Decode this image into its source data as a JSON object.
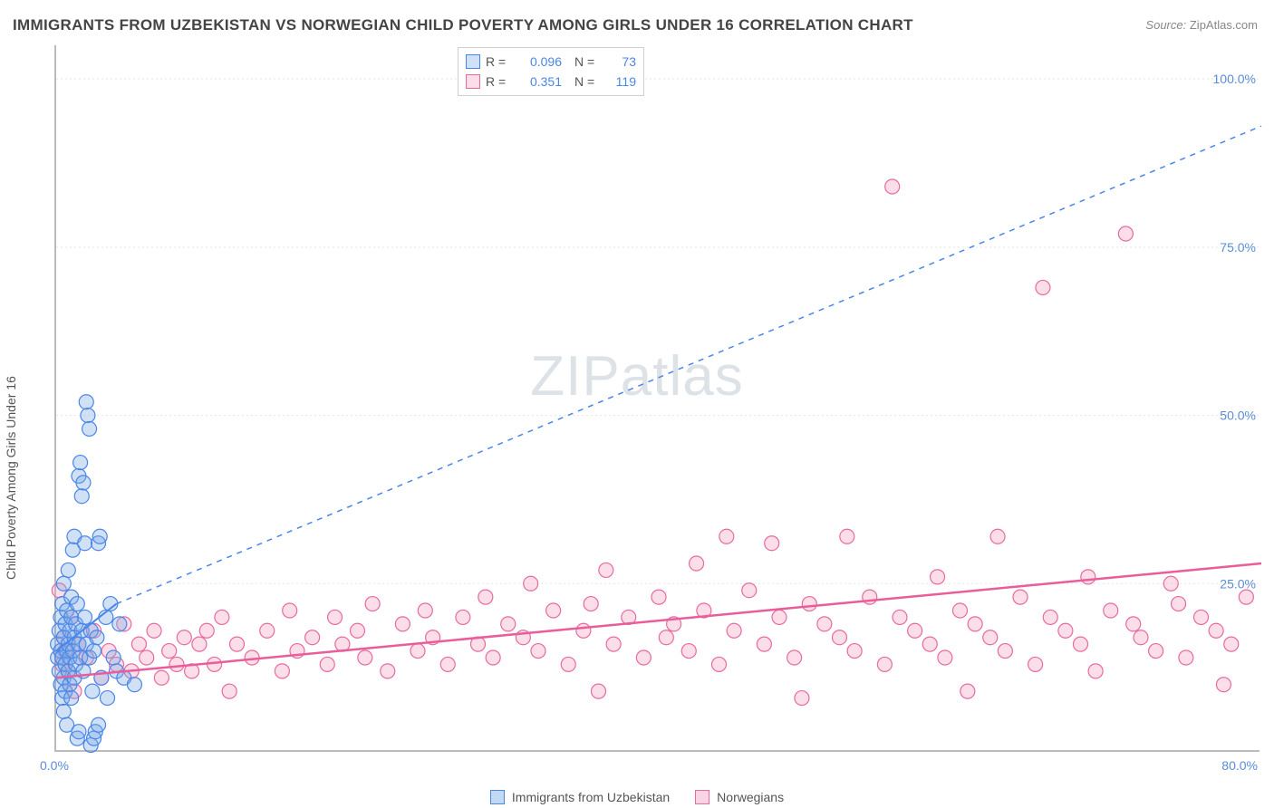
{
  "title": "IMMIGRANTS FROM UZBEKISTAN VS NORWEGIAN CHILD POVERTY AMONG GIRLS UNDER 16 CORRELATION CHART",
  "source": {
    "label": "Source:",
    "value": "ZipAtlas.com"
  },
  "watermark": {
    "zip": "ZIP",
    "atlas": "atlas"
  },
  "y_axis_label": "Child Poverty Among Girls Under 16",
  "x_origin_label": "0.0%",
  "chart": {
    "type": "scatter",
    "background_color": "#ffffff",
    "grid_color": "#e5e5e5",
    "axis_color": "#bbbbbb",
    "tick_color": "#5b8dd6",
    "xlim": [
      0,
      80
    ],
    "ylim": [
      0,
      105
    ],
    "x_ticks": [
      {
        "value": 80,
        "label": "80.0%"
      }
    ],
    "y_ticks": [
      {
        "value": 25,
        "label": "25.0%"
      },
      {
        "value": 50,
        "label": "50.0%"
      },
      {
        "value": 75,
        "label": "75.0%"
      },
      {
        "value": 100,
        "label": "100.0%"
      }
    ],
    "marker_radius": 8,
    "marker_stroke_width": 1.2,
    "series": [
      {
        "id": "blue",
        "name": "Immigrants from Uzbekistan",
        "fill": "rgba(120,170,230,0.35)",
        "stroke": "#4a86e8",
        "trend": {
          "dashed": true,
          "extend_dashed": true,
          "color": "#4a86e8",
          "width": 2,
          "solid_from": [
            0,
            15
          ],
          "solid_to": [
            4,
            22
          ],
          "dash_to": [
            80,
            93
          ]
        },
        "stats": {
          "R": "0.096",
          "N": "73"
        },
        "points": [
          [
            0.1,
            14
          ],
          [
            0.1,
            16
          ],
          [
            0.2,
            18
          ],
          [
            0.2,
            12
          ],
          [
            0.3,
            15
          ],
          [
            0.3,
            10
          ],
          [
            0.3,
            20
          ],
          [
            0.4,
            22
          ],
          [
            0.4,
            14
          ],
          [
            0.4,
            8
          ],
          [
            0.5,
            17
          ],
          [
            0.5,
            6
          ],
          [
            0.5,
            25
          ],
          [
            0.5,
            11
          ],
          [
            0.6,
            13
          ],
          [
            0.6,
            19
          ],
          [
            0.6,
            9
          ],
          [
            0.7,
            15
          ],
          [
            0.7,
            21
          ],
          [
            0.7,
            4
          ],
          [
            0.8,
            16
          ],
          [
            0.8,
            12
          ],
          [
            0.8,
            27
          ],
          [
            0.9,
            18
          ],
          [
            0.9,
            10
          ],
          [
            0.9,
            14
          ],
          [
            1.0,
            20
          ],
          [
            1.0,
            8
          ],
          [
            1.0,
            23
          ],
          [
            1.1,
            15
          ],
          [
            1.1,
            30
          ],
          [
            1.2,
            17
          ],
          [
            1.2,
            11
          ],
          [
            1.2,
            32
          ],
          [
            1.3,
            19
          ],
          [
            1.3,
            13
          ],
          [
            1.4,
            2
          ],
          [
            1.4,
            22
          ],
          [
            1.5,
            16
          ],
          [
            1.5,
            3
          ],
          [
            1.5,
            41
          ],
          [
            1.6,
            14
          ],
          [
            1.6,
            43
          ],
          [
            1.7,
            18
          ],
          [
            1.7,
            38
          ],
          [
            1.8,
            12
          ],
          [
            1.8,
            40
          ],
          [
            1.9,
            20
          ],
          [
            1.9,
            31
          ],
          [
            2.0,
            16
          ],
          [
            2.0,
            52
          ],
          [
            2.1,
            50
          ],
          [
            2.2,
            14
          ],
          [
            2.2,
            48
          ],
          [
            2.3,
            18
          ],
          [
            2.3,
            1
          ],
          [
            2.4,
            9
          ],
          [
            2.5,
            2
          ],
          [
            2.5,
            15
          ],
          [
            2.6,
            3
          ],
          [
            2.7,
            17
          ],
          [
            2.8,
            4
          ],
          [
            2.8,
            31
          ],
          [
            2.9,
            32
          ],
          [
            3.0,
            11
          ],
          [
            3.3,
            20
          ],
          [
            3.4,
            8
          ],
          [
            3.6,
            22
          ],
          [
            3.8,
            14
          ],
          [
            4.0,
            12
          ],
          [
            4.2,
            19
          ],
          [
            4.5,
            11
          ],
          [
            5.2,
            10
          ]
        ]
      },
      {
        "id": "pink",
        "name": "Norwegians",
        "fill": "rgba(245,160,190,0.35)",
        "stroke": "#e76aa0",
        "trend": {
          "dashed": false,
          "color": "#e85d9a",
          "width": 2.5,
          "solid_from": [
            0,
            11
          ],
          "solid_to": [
            80,
            28
          ]
        },
        "stats": {
          "R": "0.351",
          "N": "119"
        },
        "points": [
          [
            0.2,
            24
          ],
          [
            0.4,
            13
          ],
          [
            0.5,
            17
          ],
          [
            0.6,
            15
          ],
          [
            0.8,
            12
          ],
          [
            1.0,
            20
          ],
          [
            1.2,
            9
          ],
          [
            1.5,
            16
          ],
          [
            2,
            14
          ],
          [
            2.5,
            18
          ],
          [
            3,
            11
          ],
          [
            3.5,
            15
          ],
          [
            4,
            13
          ],
          [
            4.5,
            19
          ],
          [
            5,
            12
          ],
          [
            5.5,
            16
          ],
          [
            6,
            14
          ],
          [
            6.5,
            18
          ],
          [
            7,
            11
          ],
          [
            7.5,
            15
          ],
          [
            8,
            13
          ],
          [
            8.5,
            17
          ],
          [
            9,
            12
          ],
          [
            9.5,
            16
          ],
          [
            10,
            18
          ],
          [
            10.5,
            13
          ],
          [
            11,
            20
          ],
          [
            11.5,
            9
          ],
          [
            12,
            16
          ],
          [
            13,
            14
          ],
          [
            14,
            18
          ],
          [
            15,
            12
          ],
          [
            15.5,
            21
          ],
          [
            16,
            15
          ],
          [
            17,
            17
          ],
          [
            18,
            13
          ],
          [
            18.5,
            20
          ],
          [
            19,
            16
          ],
          [
            20,
            18
          ],
          [
            20.5,
            14
          ],
          [
            21,
            22
          ],
          [
            22,
            12
          ],
          [
            23,
            19
          ],
          [
            24,
            15
          ],
          [
            24.5,
            21
          ],
          [
            25,
            17
          ],
          [
            26,
            13
          ],
          [
            27,
            20
          ],
          [
            28,
            16
          ],
          [
            28.5,
            23
          ],
          [
            29,
            14
          ],
          [
            30,
            19
          ],
          [
            31,
            17
          ],
          [
            31.5,
            25
          ],
          [
            32,
            15
          ],
          [
            33,
            21
          ],
          [
            34,
            13
          ],
          [
            35,
            18
          ],
          [
            35.5,
            22
          ],
          [
            36,
            9
          ],
          [
            36.5,
            27
          ],
          [
            37,
            16
          ],
          [
            38,
            20
          ],
          [
            39,
            14
          ],
          [
            40,
            23
          ],
          [
            40.5,
            17
          ],
          [
            41,
            19
          ],
          [
            42,
            15
          ],
          [
            42.5,
            28
          ],
          [
            43,
            21
          ],
          [
            44,
            13
          ],
          [
            44.5,
            32
          ],
          [
            45,
            18
          ],
          [
            46,
            24
          ],
          [
            47,
            16
          ],
          [
            47.5,
            31
          ],
          [
            48,
            20
          ],
          [
            49,
            14
          ],
          [
            49.5,
            8
          ],
          [
            50,
            22
          ],
          [
            51,
            19
          ],
          [
            52,
            17
          ],
          [
            52.5,
            32
          ],
          [
            53,
            15
          ],
          [
            54,
            23
          ],
          [
            55,
            13
          ],
          [
            55.5,
            84
          ],
          [
            56,
            20
          ],
          [
            57,
            18
          ],
          [
            58,
            16
          ],
          [
            58.5,
            26
          ],
          [
            59,
            14
          ],
          [
            60,
            21
          ],
          [
            60.5,
            9
          ],
          [
            61,
            19
          ],
          [
            62,
            17
          ],
          [
            62.5,
            32
          ],
          [
            63,
            15
          ],
          [
            64,
            23
          ],
          [
            65,
            13
          ],
          [
            65.5,
            69
          ],
          [
            66,
            20
          ],
          [
            67,
            18
          ],
          [
            68,
            16
          ],
          [
            68.5,
            26
          ],
          [
            69,
            12
          ],
          [
            70,
            21
          ],
          [
            71,
            77
          ],
          [
            71.5,
            19
          ],
          [
            72,
            17
          ],
          [
            73,
            15
          ],
          [
            74,
            25
          ],
          [
            74.5,
            22
          ],
          [
            75,
            14
          ],
          [
            76,
            20
          ],
          [
            77,
            18
          ],
          [
            77.5,
            10
          ],
          [
            78,
            16
          ],
          [
            79,
            23
          ]
        ]
      }
    ]
  },
  "bottom_legend": [
    {
      "label": "Immigrants from Uzbekistan",
      "fill": "rgba(120,170,230,0.45)",
      "stroke": "#4a86e8"
    },
    {
      "label": "Norwegians",
      "fill": "rgba(245,160,190,0.45)",
      "stroke": "#e76aa0"
    }
  ]
}
